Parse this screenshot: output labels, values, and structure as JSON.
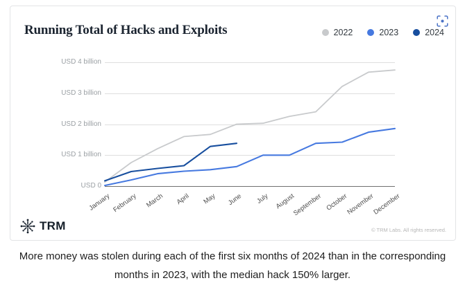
{
  "card": {
    "title": "Running Total of Hacks and Exploits",
    "logo_text": "TRM",
    "attribution": "© TRM Labs. All rights reserved.",
    "capture_icon": "focus-capture-icon"
  },
  "caption": "More money was stolen during each of the first six months of 2024 than in the corresponding months in 2023, with the median hack 150% larger.",
  "chart_data": {
    "type": "line",
    "title": "Running Total of Hacks and Exploits",
    "unit": "USD billions",
    "x_categories": [
      "January",
      "February",
      "March",
      "April",
      "May",
      "June",
      "July",
      "August",
      "September",
      "October",
      "November",
      "December"
    ],
    "y_tick_labels": [
      "USD 4 billion",
      "USD 3 billion",
      "USD 2 billion",
      "USD 1 billion",
      "USD 0"
    ],
    "y_tick_values": [
      4,
      3,
      2,
      1,
      0
    ],
    "ylim": [
      0,
      4.35
    ],
    "grid": "horizontal",
    "legend_position": "top-right",
    "series": [
      {
        "name": "2022",
        "color": "#c8cacc",
        "values": [
          0.13,
          0.76,
          1.21,
          1.6,
          1.67,
          2.0,
          2.03,
          2.25,
          2.4,
          3.22,
          3.68,
          3.75
        ]
      },
      {
        "name": "2023",
        "color": "#4679e0",
        "values": [
          0.02,
          0.2,
          0.4,
          0.48,
          0.53,
          0.63,
          1.0,
          1.0,
          1.38,
          1.42,
          1.74,
          1.86
        ]
      },
      {
        "name": "2024",
        "color": "#174e9e",
        "values": [
          0.17,
          0.47,
          0.57,
          0.66,
          1.28,
          1.38
        ]
      }
    ]
  }
}
